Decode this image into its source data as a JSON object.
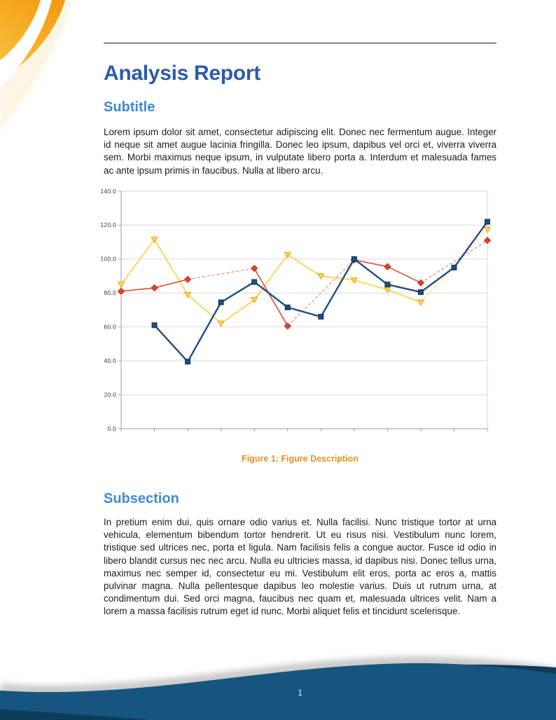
{
  "page": {
    "number": "1"
  },
  "document": {
    "title": "Analysis Report",
    "section": {
      "heading": "Subtitle",
      "body": "Lorem ipsum dolor sit amet, consectetur adipiscing elit.  Donec nec fermentum augue.  Integer id neque sit amet augue lacinia fringilla.  Donec leo ipsum, dapibus vel orci et, viverra viverra sem.  Morbi maximus neque ipsum, in vulputate libero porta a.  Interdum et malesuada fames ac ante ipsum primis in faucibus.  Nulla at libero arcu."
    },
    "figure": {
      "caption": "Figure 1: Figure Description"
    },
    "subsection": {
      "heading": "Subsection",
      "body": "In pretium enim dui, quis ornare odio varius et.  Nulla facilisi.  Nunc tristique tortor at urna vehicula, elementum bibendum tortor hendrerit.  Ut eu risus nisi.  Vestibulum nunc lorem, tristique sed ultrices nec, porta et ligula.  Nam facilisis felis a congue auctor.  Fusce id odio in libero blandit cursus nec nec arcu.  Nulla eu ultricies massa, id dapibus nisi.  Donec tellus urna, maximus nec semper id, consectetur eu mi.  Vestibulum elit eros, porta ac eros a, mattis pulvinar magna.  Nulla pellentesque dapibus leo molestie varius.  Duis ut rutrum urna, at condimentum dui.  Sed orci magna, faucibus nec quam et, malesuada ultrices velit.  Nam a lorem a massa facilisis rutrum eget id nunc.  Morbi aliquet felis et tincidunt scelerisque."
    }
  },
  "colors": {
    "title_blue": "#2b5ca8",
    "heading_blue": "#3d8bd4",
    "caption_orange": "#e39220",
    "footer_main_blue": "#16567e",
    "footer_dark_blue": "#0d3c5a",
    "swoosh_orange_top": "#f29c12",
    "swoosh_orange_bottom": "#fbc644",
    "grid_gray": "#d9d9d9",
    "axis_gray": "#8ea0b5"
  },
  "chart_data": {
    "type": "line",
    "title": "",
    "xlabel": "",
    "ylabel": "",
    "x": [
      1,
      2,
      3,
      4,
      5,
      6,
      7,
      8,
      9,
      10,
      11,
      12
    ],
    "x_tick_labels": [],
    "ylim": [
      0,
      140
    ],
    "ytick_step": 20,
    "ytick_labels": [
      "0.0",
      "20.0",
      "40.0",
      "60.0",
      "80.0",
      "100.0",
      "120.0",
      "140.0"
    ],
    "grid": true,
    "legend": false,
    "gap_style": "dashed-interpolation-across-missing-values",
    "series": [
      {
        "name": "series-1-blue",
        "color": "#1d4e81",
        "marker": "square",
        "marker_stroke": "#13304f",
        "line_width": 2.4,
        "values": [
          null,
          61,
          39.5,
          74.5,
          86.5,
          71.5,
          66,
          100,
          85,
          80.5,
          95,
          122
        ]
      },
      {
        "name": "series-2-red",
        "color": "#e2402e",
        "dash_color": "#ee8272",
        "marker": "diamond",
        "marker_stroke": "#b93723",
        "line_width": 1.5,
        "values": [
          81,
          83,
          88,
          null,
          94.5,
          60.5,
          null,
          99.5,
          95.5,
          86,
          null,
          111
        ]
      },
      {
        "name": "series-3-yellow",
        "color": "#ffd24d",
        "dash_color": "#ffe28d",
        "marker": "triangle-down",
        "marker_stroke": "#e2a82c",
        "line_width": 1.8,
        "values": [
          85,
          111.5,
          79,
          62,
          76,
          102.5,
          90,
          87.5,
          82,
          74.5,
          null,
          117.5
        ]
      }
    ]
  }
}
